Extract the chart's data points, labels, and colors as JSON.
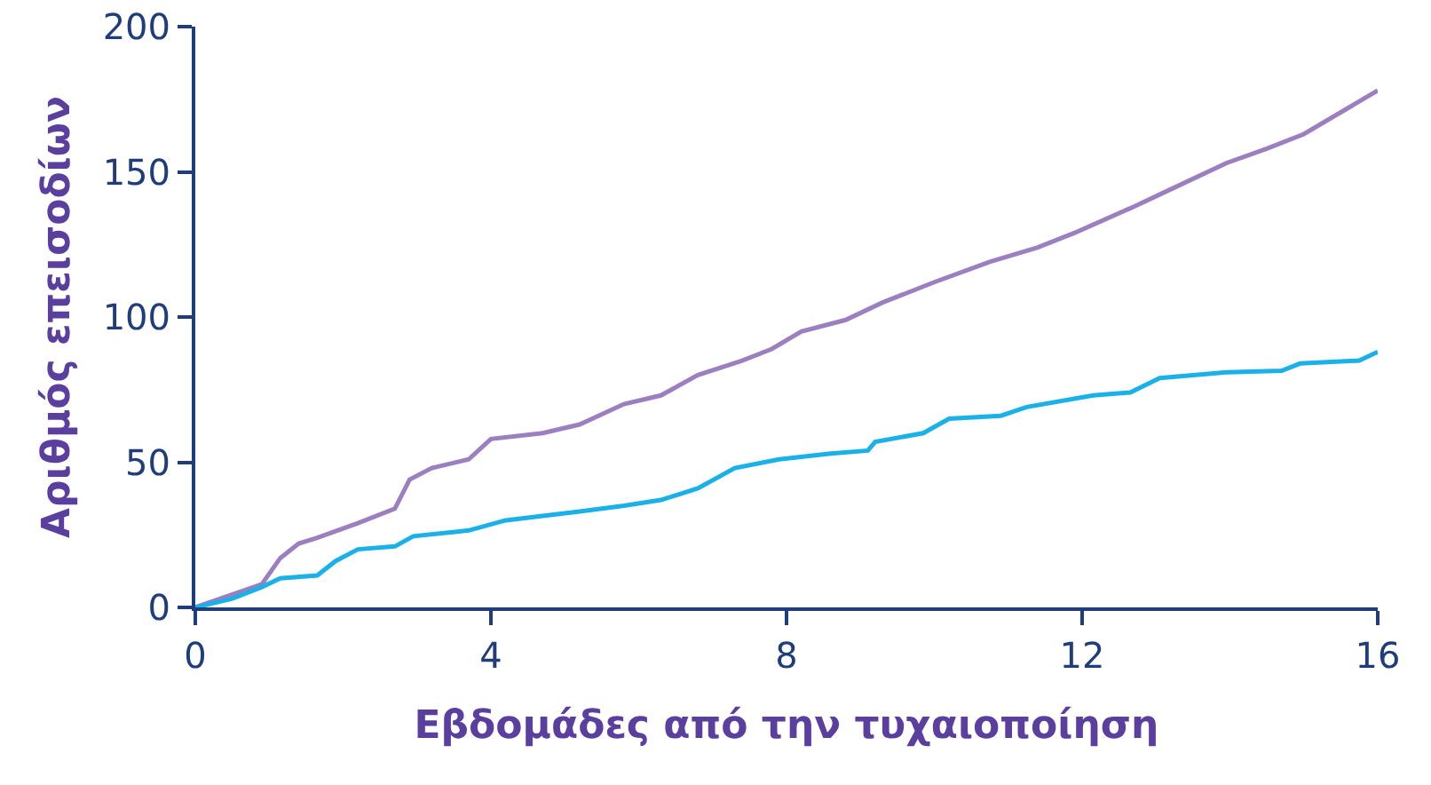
{
  "chart_data": {
    "type": "line",
    "xlabel": "Εβδομάδες από την τυχαιοποίηση",
    "ylabel": "Αριθμός επεισοδίων",
    "xlim": [
      0,
      16
    ],
    "xticks": [
      0,
      4,
      8,
      12,
      16
    ],
    "ylim": [
      0,
      200
    ],
    "yticks": [
      0,
      50,
      100,
      150,
      200
    ],
    "marker": "none",
    "line_style": "solid",
    "series": [
      {
        "color": "#9b7fc0",
        "x": [
          0,
          0.9,
          1.15,
          1.4,
          1.65,
          2.2,
          2.7,
          2.9,
          3.2,
          3.7,
          4.0,
          4.7,
          5.2,
          5.8,
          6.3,
          6.8,
          7.4,
          7.8,
          8.2,
          8.8,
          9.3,
          10.0,
          10.75,
          11.4,
          11.9,
          12.7,
          13.2,
          13.95,
          14.5,
          15,
          16
        ],
        "values": [
          0,
          8,
          17,
          22,
          24,
          29,
          34,
          44,
          48,
          51,
          58,
          60,
          63,
          70,
          73,
          80,
          85,
          89,
          95,
          99,
          105,
          112,
          119,
          124,
          129,
          138,
          144,
          153,
          158,
          163,
          178
        ]
      },
      {
        "color": "#1ab0e8",
        "x": [
          0,
          0.5,
          0.9,
          1.15,
          1.65,
          1.9,
          2.2,
          2.7,
          2.95,
          3.7,
          4.2,
          5.2,
          5.8,
          6.3,
          6.8,
          7.3,
          7.9,
          8.6,
          9.1,
          9.2,
          9.85,
          10.2,
          10.9,
          11.25,
          12.15,
          12.65,
          13.05,
          13.95,
          14.7,
          14.95,
          15.75,
          16
        ],
        "values": [
          0,
          3,
          7,
          10,
          11,
          16,
          20,
          21,
          24.5,
          26.5,
          30,
          33,
          35,
          37,
          41,
          48,
          51,
          53,
          54,
          57,
          60,
          65,
          66,
          69,
          73,
          74,
          79,
          81,
          81.5,
          84,
          85,
          88
        ]
      }
    ]
  }
}
